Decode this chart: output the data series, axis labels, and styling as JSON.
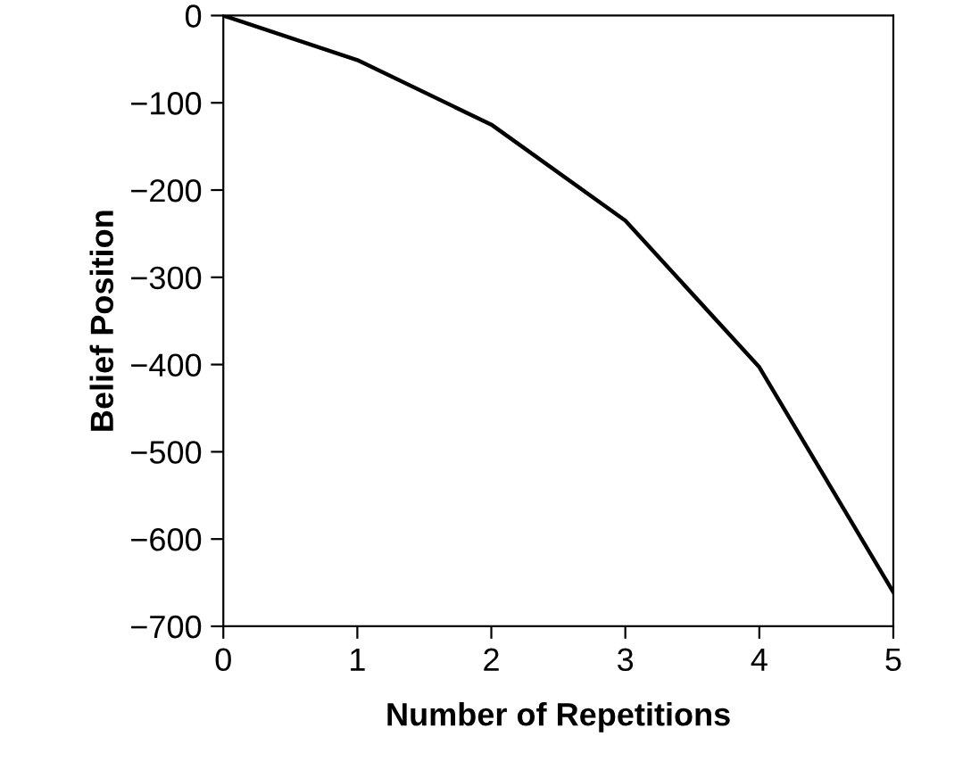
{
  "chart_data": {
    "type": "line",
    "xlabel": "Number of Repetitions",
    "ylabel": "Belief Position",
    "x": [
      0,
      1,
      2,
      3,
      4,
      5
    ],
    "series": [
      {
        "color": "#000000",
        "values": [
          0,
          -51,
          -125,
          -235,
          -403,
          -661
        ]
      }
    ],
    "xlim": [
      0,
      5
    ],
    "xticks": [
      0,
      1,
      2,
      3,
      4,
      5
    ],
    "ylim": [
      -700,
      0
    ],
    "yticks": [
      0,
      {
        "value": -100,
        "label": "−100"
      },
      {
        "value": -200,
        "label": "−200"
      },
      {
        "value": -300,
        "label": "−300"
      },
      {
        "value": -400,
        "label": "−400"
      },
      {
        "value": -500,
        "label": "−500"
      },
      {
        "value": -600,
        "label": "−600"
      },
      {
        "value": -700,
        "label": "−700"
      }
    ],
    "grid": false,
    "marker": "none",
    "line_style": "solid"
  }
}
